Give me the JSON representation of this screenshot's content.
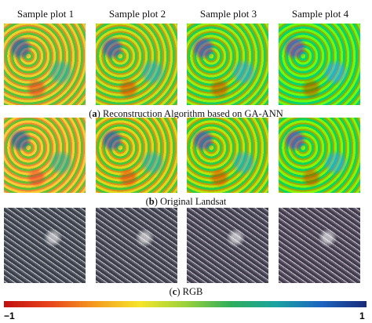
{
  "columns": [
    "Sample plot 1",
    "Sample plot 2",
    "Sample plot 3",
    "Sample plot 4"
  ],
  "panels": [
    {
      "open": "(",
      "letter": "a",
      "close": ")",
      "caption": "Reconstruction Algorithm based on GA-ANN"
    },
    {
      "open": "(",
      "letter": "b",
      "close": ")",
      "caption": "Original Landsat"
    },
    {
      "open": "(",
      "letter": "c",
      "close": ")",
      "caption": "RGB"
    }
  ],
  "colorbar": {
    "min_label": "−1",
    "max_label": "1"
  }
}
